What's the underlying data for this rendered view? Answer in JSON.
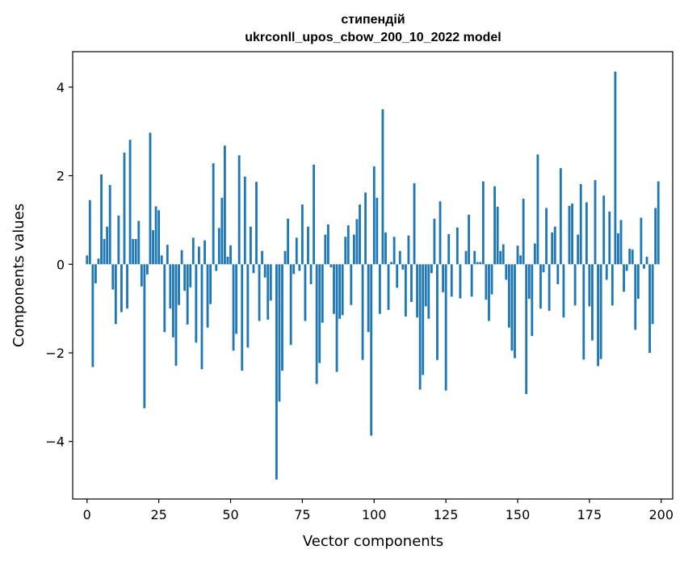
{
  "chart_data": {
    "type": "bar",
    "title_line1": "стипендій",
    "title_line2": "ukrconll_upos_cbow_200_10_2022 model",
    "xlabel": "Vector components",
    "ylabel": "Components values",
    "xlim": [
      -5,
      204
    ],
    "ylim": [
      -5.3,
      4.8
    ],
    "xticks": [
      0,
      25,
      50,
      75,
      100,
      125,
      150,
      175,
      200
    ],
    "yticks": [
      -4,
      -2,
      0,
      2,
      4
    ],
    "ytick_labels": [
      "−4",
      "−2",
      "0",
      "2",
      "4"
    ],
    "bar_color": "#1f77b4",
    "grid": false,
    "x": [
      0,
      1,
      2,
      3,
      4,
      5,
      6,
      7,
      8,
      9,
      10,
      11,
      12,
      13,
      14,
      15,
      16,
      17,
      18,
      19,
      20,
      21,
      22,
      23,
      24,
      25,
      26,
      27,
      28,
      29,
      30,
      31,
      32,
      33,
      34,
      35,
      36,
      37,
      38,
      39,
      40,
      41,
      42,
      43,
      44,
      45,
      46,
      47,
      48,
      49,
      50,
      51,
      52,
      53,
      54,
      55,
      56,
      57,
      58,
      59,
      60,
      61,
      62,
      63,
      64,
      65,
      66,
      67,
      68,
      69,
      70,
      71,
      72,
      73,
      74,
      75,
      76,
      77,
      78,
      79,
      80,
      81,
      82,
      83,
      84,
      85,
      86,
      87,
      88,
      89,
      90,
      91,
      92,
      93,
      94,
      95,
      96,
      97,
      98,
      99,
      100,
      101,
      102,
      103,
      104,
      105,
      106,
      107,
      108,
      109,
      110,
      111,
      112,
      113,
      114,
      115,
      116,
      117,
      118,
      119,
      120,
      121,
      122,
      123,
      124,
      125,
      126,
      127,
      128,
      129,
      130,
      131,
      132,
      133,
      134,
      135,
      136,
      137,
      138,
      139,
      140,
      141,
      142,
      143,
      144,
      145,
      146,
      147,
      148,
      149,
      150,
      151,
      152,
      153,
      154,
      155,
      156,
      157,
      158,
      159,
      160,
      161,
      162,
      163,
      164,
      165,
      166,
      167,
      168,
      169,
      170,
      171,
      172,
      173,
      174,
      175,
      176,
      177,
      178,
      179,
      180,
      181,
      182,
      183,
      184,
      185,
      186,
      187,
      188,
      189,
      190,
      191,
      192,
      193,
      194,
      195,
      196,
      197,
      198,
      199
    ],
    "values": [
      0.2,
      1.45,
      -2.32,
      -0.43,
      0.13,
      2.03,
      0.57,
      0.85,
      1.79,
      -0.57,
      -1.35,
      1.1,
      -1.08,
      2.52,
      -1.0,
      2.81,
      0.57,
      0.57,
      0.98,
      -0.5,
      -3.25,
      -0.23,
      2.97,
      0.77,
      1.31,
      1.22,
      0.2,
      -1.53,
      0.44,
      -1.0,
      -1.65,
      -2.29,
      -0.92,
      0.32,
      -0.6,
      -1.36,
      -0.52,
      0.6,
      -1.77,
      0.4,
      -2.37,
      0.54,
      -1.43,
      -0.9,
      2.28,
      -0.15,
      0.82,
      1.5,
      2.68,
      0.17,
      0.43,
      -1.95,
      -1.57,
      2.46,
      -2.4,
      1.98,
      -1.88,
      0.85,
      -0.2,
      1.86,
      -1.28,
      0.3,
      -0.3,
      -1.25,
      -0.82,
      0.0,
      -4.86,
      -3.1,
      -2.4,
      0.3,
      1.03,
      -1.82,
      -0.22,
      0.6,
      -0.15,
      1.35,
      -1.28,
      0.85,
      -0.45,
      2.25,
      -2.7,
      -2.23,
      -1.32,
      0.67,
      0.9,
      -0.07,
      -1.12,
      -2.43,
      -1.23,
      -1.15,
      0.62,
      0.88,
      -0.92,
      0.67,
      1.02,
      1.35,
      -2.16,
      1.62,
      -1.53,
      -3.87,
      2.21,
      1.5,
      -1.12,
      3.5,
      0.72,
      -1.03,
      0.05,
      0.62,
      -0.53,
      0.3,
      -0.12,
      -1.18,
      0.65,
      -0.85,
      1.83,
      -1.2,
      -2.83,
      -2.5,
      -0.95,
      -1.23,
      -0.2,
      1.03,
      -2.16,
      1.42,
      -0.63,
      -2.85,
      0.68,
      -0.73,
      0.0,
      0.83,
      -0.77,
      0.0,
      0.3,
      1.12,
      -0.73,
      0.3,
      0.05,
      0.05,
      1.87,
      -0.8,
      -1.28,
      -0.68,
      1.76,
      1.3,
      0.3,
      0.45,
      -0.35,
      -1.43,
      -1.95,
      -2.12,
      0.42,
      0.2,
      1.48,
      -2.93,
      -0.78,
      -1.62,
      0.47,
      2.48,
      -1.0,
      -0.18,
      1.27,
      -1.05,
      0.72,
      0.85,
      -0.45,
      2.17,
      -1.2,
      0.0,
      1.32,
      1.37,
      -0.93,
      0.67,
      1.81,
      -2.15,
      1.4,
      -0.95,
      -1.72,
      1.9,
      -2.3,
      -2.14,
      1.55,
      -0.35,
      1.19,
      -0.93,
      4.35,
      0.7,
      1.0,
      -0.62,
      -0.15,
      0.35,
      0.33,
      -1.48,
      -0.78,
      1.05,
      -0.1,
      0.17,
      -2.0,
      -1.35,
      1.27,
      1.87
    ]
  }
}
